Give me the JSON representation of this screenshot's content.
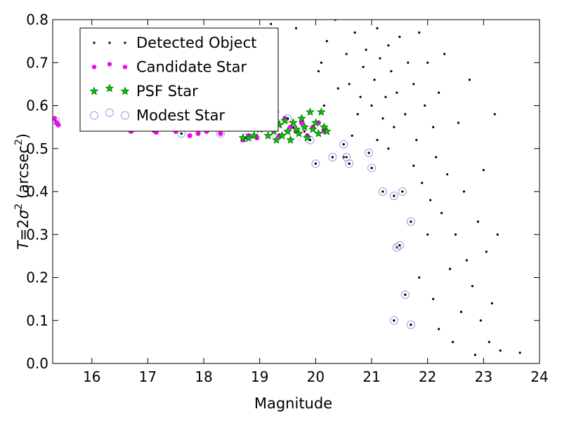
{
  "chart_data": {
    "type": "scatter",
    "xlabel": "Magnitude",
    "ylabel": "T = 2σ² (arcsec²)",
    "ylabel_parts": {
      "T": "T",
      "eq": "=2",
      "sigma": "σ",
      "sq": "2",
      "unit_open": " (arcsec",
      "unit_sq": "2",
      "unit_close": ")"
    },
    "xlim": [
      15.3,
      24.0
    ],
    "ylim": [
      0.0,
      0.8
    ],
    "xticks": [
      "16",
      "17",
      "18",
      "19",
      "20",
      "21",
      "22",
      "23",
      "24"
    ],
    "yticks": [
      "0.0",
      "0.1",
      "0.2",
      "0.3",
      "0.4",
      "0.5",
      "0.6",
      "0.7",
      "0.8"
    ],
    "grid": false,
    "legend_position": "top-left",
    "colors": {
      "detected": "#000000",
      "candidate": "#ff00ff",
      "psf_fill": "#00cc00",
      "psf_edge": "#006600",
      "modest": "#9999ee"
    },
    "series": [
      {
        "name": "Detected Object",
        "marker": "dot",
        "points": [
          [
            15.35,
            0.565
          ],
          [
            15.42,
            0.556
          ],
          [
            15.9,
            0.55
          ],
          [
            16.7,
            0.545
          ],
          [
            17.1,
            0.54
          ],
          [
            17.6,
            0.535
          ],
          [
            17.9,
            0.538
          ],
          [
            18.3,
            0.535
          ],
          [
            18.75,
            0.525
          ],
          [
            18.95,
            0.53
          ],
          [
            19.05,
            0.605
          ],
          [
            19.1,
            0.77
          ],
          [
            19.2,
            0.79
          ],
          [
            19.3,
            0.56
          ],
          [
            19.4,
            0.53
          ],
          [
            19.5,
            0.57
          ],
          [
            19.6,
            0.55
          ],
          [
            19.65,
            0.78
          ],
          [
            19.8,
            0.54
          ],
          [
            19.9,
            0.52
          ],
          [
            20.0,
            0.465
          ],
          [
            20.05,
            0.68
          ],
          [
            20.05,
            0.56
          ],
          [
            20.1,
            0.7
          ],
          [
            20.15,
            0.6
          ],
          [
            20.2,
            0.75
          ],
          [
            20.3,
            0.48
          ],
          [
            20.35,
            0.8
          ],
          [
            20.4,
            0.64
          ],
          [
            20.5,
            0.51
          ],
          [
            20.5,
            0.48
          ],
          [
            20.55,
            0.72
          ],
          [
            20.6,
            0.465
          ],
          [
            20.6,
            0.65
          ],
          [
            20.65,
            0.53
          ],
          [
            20.7,
            0.77
          ],
          [
            20.75,
            0.58
          ],
          [
            20.8,
            0.62
          ],
          [
            20.85,
            0.69
          ],
          [
            20.9,
            0.73
          ],
          [
            20.95,
            0.49
          ],
          [
            21.0,
            0.455
          ],
          [
            21.0,
            0.6
          ],
          [
            21.05,
            0.66
          ],
          [
            21.1,
            0.78
          ],
          [
            21.1,
            0.52
          ],
          [
            21.15,
            0.71
          ],
          [
            21.2,
            0.57
          ],
          [
            21.2,
            0.4
          ],
          [
            21.25,
            0.62
          ],
          [
            21.3,
            0.74
          ],
          [
            21.3,
            0.5
          ],
          [
            21.35,
            0.68
          ],
          [
            21.4,
            0.39
          ],
          [
            21.4,
            0.55
          ],
          [
            21.4,
            0.1
          ],
          [
            21.45,
            0.27
          ],
          [
            21.45,
            0.63
          ],
          [
            21.5,
            0.275
          ],
          [
            21.5,
            0.76
          ],
          [
            21.55,
            0.4
          ],
          [
            21.6,
            0.16
          ],
          [
            21.6,
            0.58
          ],
          [
            21.65,
            0.7
          ],
          [
            21.7,
            0.33
          ],
          [
            21.7,
            0.09
          ],
          [
            21.75,
            0.46
          ],
          [
            21.75,
            0.65
          ],
          [
            21.8,
            0.52
          ],
          [
            21.85,
            0.2
          ],
          [
            21.85,
            0.77
          ],
          [
            21.9,
            0.42
          ],
          [
            21.95,
            0.6
          ],
          [
            22.0,
            0.3
          ],
          [
            22.0,
            0.7
          ],
          [
            22.05,
            0.38
          ],
          [
            22.1,
            0.15
          ],
          [
            22.1,
            0.55
          ],
          [
            22.15,
            0.48
          ],
          [
            22.2,
            0.08
          ],
          [
            22.2,
            0.63
          ],
          [
            22.25,
            0.35
          ],
          [
            22.3,
            0.72
          ],
          [
            22.35,
            0.44
          ],
          [
            22.4,
            0.22
          ],
          [
            22.45,
            0.05
          ],
          [
            22.5,
            0.3
          ],
          [
            22.55,
            0.56
          ],
          [
            22.6,
            0.12
          ],
          [
            22.65,
            0.4
          ],
          [
            22.7,
            0.24
          ],
          [
            22.75,
            0.66
          ],
          [
            22.8,
            0.18
          ],
          [
            22.85,
            0.02
          ],
          [
            22.9,
            0.33
          ],
          [
            22.95,
            0.1
          ],
          [
            23.0,
            0.45
          ],
          [
            23.05,
            0.26
          ],
          [
            23.1,
            0.05
          ],
          [
            23.15,
            0.14
          ],
          [
            23.2,
            0.58
          ],
          [
            23.25,
            0.3
          ],
          [
            23.3,
            0.03
          ],
          [
            23.65,
            0.025
          ]
        ]
      },
      {
        "name": "Candidate Star",
        "marker": "circle",
        "points": [
          [
            15.33,
            0.57
          ],
          [
            15.37,
            0.56
          ],
          [
            15.4,
            0.555
          ],
          [
            16.7,
            0.54
          ],
          [
            17.15,
            0.538
          ],
          [
            17.5,
            0.54
          ],
          [
            17.75,
            0.53
          ],
          [
            17.9,
            0.535
          ],
          [
            18.05,
            0.54
          ],
          [
            18.3,
            0.535
          ],
          [
            18.45,
            0.545
          ],
          [
            18.7,
            0.52
          ],
          [
            18.8,
            0.53
          ],
          [
            18.95,
            0.525
          ],
          [
            19.05,
            0.55
          ],
          [
            19.2,
            0.56
          ],
          [
            19.3,
            0.585
          ],
          [
            19.35,
            0.53
          ],
          [
            19.45,
            0.57
          ],
          [
            19.55,
            0.55
          ],
          [
            19.65,
            0.54
          ],
          [
            19.75,
            0.56
          ],
          [
            19.85,
            0.53
          ],
          [
            19.95,
            0.55
          ],
          [
            20.05,
            0.56
          ],
          [
            20.15,
            0.54
          ]
        ]
      },
      {
        "name": "PSF Star",
        "marker": "star",
        "points": [
          [
            18.7,
            0.525
          ],
          [
            18.8,
            0.525
          ],
          [
            18.9,
            0.53
          ],
          [
            19.0,
            0.545
          ],
          [
            19.1,
            0.55
          ],
          [
            19.15,
            0.53
          ],
          [
            19.2,
            0.56
          ],
          [
            19.25,
            0.54
          ],
          [
            19.3,
            0.52
          ],
          [
            19.35,
            0.555
          ],
          [
            19.4,
            0.53
          ],
          [
            19.45,
            0.565
          ],
          [
            19.5,
            0.54
          ],
          [
            19.55,
            0.52
          ],
          [
            19.6,
            0.56
          ],
          [
            19.65,
            0.545
          ],
          [
            19.7,
            0.535
          ],
          [
            19.75,
            0.57
          ],
          [
            19.8,
            0.55
          ],
          [
            19.85,
            0.525
          ],
          [
            19.9,
            0.585
          ],
          [
            19.95,
            0.545
          ],
          [
            20.0,
            0.56
          ],
          [
            20.05,
            0.535
          ],
          [
            20.1,
            0.585
          ],
          [
            20.15,
            0.55
          ],
          [
            20.2,
            0.54
          ]
        ]
      },
      {
        "name": "Modest Star",
        "marker": "ring",
        "points": [
          [
            15.35,
            0.565
          ],
          [
            15.9,
            0.55
          ],
          [
            16.7,
            0.545
          ],
          [
            17.6,
            0.535
          ],
          [
            18.3,
            0.535
          ],
          [
            18.75,
            0.525
          ],
          [
            19.3,
            0.56
          ],
          [
            19.5,
            0.57
          ],
          [
            19.9,
            0.52
          ],
          [
            20.0,
            0.465
          ],
          [
            20.3,
            0.48
          ],
          [
            20.5,
            0.51
          ],
          [
            20.55,
            0.48
          ],
          [
            20.6,
            0.465
          ],
          [
            20.95,
            0.49
          ],
          [
            21.0,
            0.455
          ],
          [
            21.2,
            0.4
          ],
          [
            21.4,
            0.39
          ],
          [
            21.4,
            0.1
          ],
          [
            21.45,
            0.27
          ],
          [
            21.5,
            0.275
          ],
          [
            21.55,
            0.4
          ],
          [
            21.6,
            0.16
          ],
          [
            21.7,
            0.33
          ],
          [
            21.7,
            0.09
          ]
        ]
      }
    ]
  }
}
